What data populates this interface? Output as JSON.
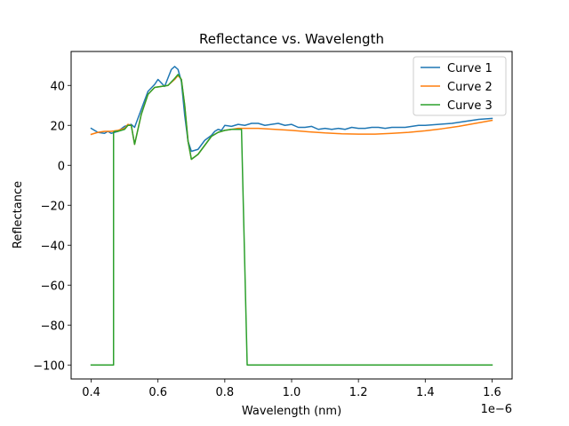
{
  "chart_data": {
    "type": "line",
    "title": "Reflectance vs. Wavelength",
    "xlabel": "Wavelength (nm)",
    "ylabel": "Reflectance",
    "x_offset_text": "1e−6",
    "xlim": [
      0.34,
      1.66
    ],
    "ylim": [
      -107,
      57
    ],
    "xticks": [
      0.4,
      0.6,
      0.8,
      1.0,
      1.2,
      1.4,
      1.6
    ],
    "xtick_labels": [
      "0.4",
      "0.6",
      "0.8",
      "1.0",
      "1.2",
      "1.4",
      "1.6"
    ],
    "yticks": [
      -100,
      -80,
      -60,
      -40,
      -20,
      0,
      20,
      40
    ],
    "ytick_labels": [
      "−100",
      "−80",
      "−60",
      "−40",
      "−20",
      "0",
      "20",
      "40"
    ],
    "grid": false,
    "legend_position": "top-right",
    "series": [
      {
        "name": "Curve 1",
        "color": "#1f77b4",
        "x": [
          0.4,
          0.42,
          0.44,
          0.45,
          0.46,
          0.48,
          0.5,
          0.52,
          0.53,
          0.55,
          0.57,
          0.59,
          0.6,
          0.62,
          0.64,
          0.65,
          0.66,
          0.67,
          0.68,
          0.69,
          0.7,
          0.72,
          0.74,
          0.76,
          0.77,
          0.78,
          0.79,
          0.8,
          0.82,
          0.84,
          0.86,
          0.88,
          0.9,
          0.92,
          0.94,
          0.96,
          0.98,
          1.0,
          1.02,
          1.04,
          1.06,
          1.08,
          1.1,
          1.12,
          1.14,
          1.16,
          1.18,
          1.2,
          1.22,
          1.24,
          1.26,
          1.28,
          1.3,
          1.32,
          1.34,
          1.36,
          1.38,
          1.4,
          1.44,
          1.48,
          1.52,
          1.56,
          1.6
        ],
        "y": [
          18.5,
          16.5,
          16.0,
          17.0,
          16.0,
          17.0,
          19.5,
          20.5,
          19.0,
          28.0,
          37.0,
          40.5,
          43.0,
          39.5,
          48.0,
          49.5,
          48.0,
          42.0,
          25.0,
          12.0,
          7.0,
          8.0,
          12.5,
          15.0,
          17.0,
          18.0,
          17.5,
          20.0,
          19.5,
          20.5,
          20.0,
          21.0,
          21.0,
          20.0,
          20.5,
          21.0,
          20.0,
          20.5,
          19.0,
          19.0,
          19.5,
          18.0,
          18.5,
          18.0,
          18.5,
          18.0,
          19.0,
          18.5,
          18.5,
          19.0,
          19.0,
          18.5,
          19.0,
          19.0,
          19.0,
          19.5,
          20.0,
          20.0,
          20.5,
          21.0,
          22.0,
          23.0,
          23.5
        ]
      },
      {
        "name": "Curve 2",
        "color": "#ff7f0e",
        "x": [
          0.4,
          0.42,
          0.44,
          0.46,
          0.48,
          0.5,
          0.51,
          0.52,
          0.53,
          0.55,
          0.57,
          0.59,
          0.61,
          0.63,
          0.65,
          0.66,
          0.67,
          0.68,
          0.69,
          0.7,
          0.72,
          0.74,
          0.76,
          0.78,
          0.8,
          0.82,
          0.84,
          0.86,
          0.9,
          0.95,
          1.0,
          1.05,
          1.1,
          1.15,
          1.2,
          1.25,
          1.3,
          1.35,
          1.4,
          1.45,
          1.5,
          1.55,
          1.6
        ],
        "y": [
          15.5,
          16.5,
          17.0,
          17.0,
          17.5,
          18.5,
          20.5,
          20.0,
          10.5,
          25.5,
          35.5,
          39.0,
          39.5,
          40.0,
          43.0,
          45.0,
          43.0,
          30.0,
          12.0,
          3.0,
          5.5,
          10.0,
          14.5,
          16.5,
          17.5,
          18.0,
          18.5,
          18.5,
          18.5,
          18.0,
          17.5,
          16.8,
          16.2,
          15.8,
          15.6,
          15.6,
          16.0,
          16.5,
          17.3,
          18.3,
          19.5,
          21.0,
          22.5
        ]
      },
      {
        "name": "Curve 3",
        "color": "#2ca02c",
        "x": [
          0.4,
          0.467,
          0.467,
          0.47,
          0.48,
          0.5,
          0.51,
          0.52,
          0.53,
          0.55,
          0.57,
          0.59,
          0.61,
          0.63,
          0.65,
          0.66,
          0.67,
          0.68,
          0.69,
          0.7,
          0.72,
          0.74,
          0.76,
          0.78,
          0.8,
          0.82,
          0.84,
          0.85,
          0.85,
          0.867,
          1.6
        ],
        "y": [
          -100,
          -100,
          16.5,
          17.0,
          17.0,
          18.0,
          20.0,
          20.0,
          10.5,
          25.5,
          35.5,
          39.0,
          39.5,
          40.0,
          43.5,
          45.5,
          43.0,
          30.0,
          12.0,
          3.0,
          5.5,
          10.0,
          14.5,
          16.5,
          17.5,
          18.0,
          18.0,
          18.0,
          18.0,
          -100,
          -100
        ]
      }
    ]
  }
}
